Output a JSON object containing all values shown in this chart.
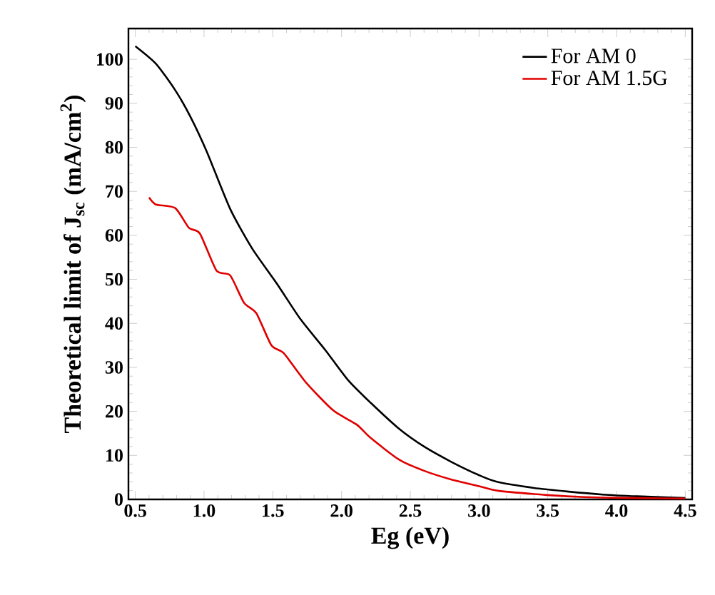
{
  "chart_data": {
    "type": "line",
    "xlabel": "Eg (eV)",
    "ylabel": "Theoretical limit of J$_{sc}$ (mA/cm$^{2}$)",
    "xlim": [
      0.45,
      4.55
    ],
    "ylim": [
      0,
      107
    ],
    "xticks": [
      0.5,
      {
        "value": 1,
        "label": "1.0"
      },
      1.5,
      {
        "value": 2,
        "label": "2.0"
      },
      2.5,
      {
        "value": 3,
        "label": "3.0"
      },
      3.5,
      {
        "value": 4,
        "label": "4.0"
      },
      4.5
    ],
    "yticks": [
      0,
      10,
      20,
      30,
      40,
      50,
      60,
      70,
      80,
      90,
      100
    ],
    "legend": "top right",
    "grid": false,
    "marker": "none",
    "line_style": "solid",
    "series": [
      {
        "name": "For AM 0",
        "color": "#000000",
        "x": [
          0.5,
          0.65,
          0.79,
          0.9,
          1.02,
          1.19,
          1.35,
          1.53,
          1.7,
          1.88,
          2.05,
          2.21,
          2.42,
          2.6,
          2.8,
          3.0,
          3.13,
          3.4,
          3.64,
          3.9,
          4.15,
          4.5
        ],
        "values": [
          103,
          99,
          93,
          87,
          79,
          66,
          57,
          49,
          41,
          34,
          27,
          22,
          16,
          12,
          8.5,
          5.5,
          4,
          2.6,
          1.8,
          1.1,
          0.7,
          0.3
        ]
      },
      {
        "name": "For AM 1.5G",
        "color": "#e00000",
        "x": [
          0.6,
          0.65,
          0.79,
          0.89,
          0.97,
          1.09,
          1.19,
          1.29,
          1.38,
          1.49,
          1.58,
          1.74,
          1.94,
          2.11,
          2.21,
          2.42,
          2.6,
          2.8,
          3.0,
          3.13,
          3.4,
          3.64,
          3.9,
          4.15,
          4.5
        ],
        "values": [
          68.6,
          67,
          66.2,
          61.7,
          60.4,
          52,
          50.9,
          44.7,
          42.3,
          35,
          33.2,
          26.6,
          20.2,
          17,
          14,
          9,
          6.5,
          4.5,
          3,
          2,
          1.2,
          0.7,
          0.4,
          0.3,
          0.2
        ]
      }
    ]
  }
}
